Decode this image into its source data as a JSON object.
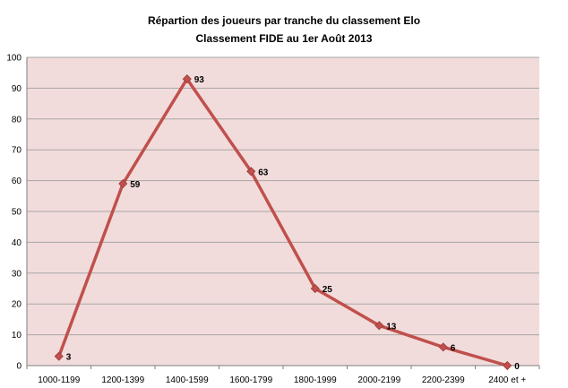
{
  "chart_data": {
    "type": "line",
    "title": "Répartion des joueurs par tranche du classement Elo",
    "subtitle": "Classement FIDE au 1er Août 2013",
    "categories": [
      "1000-1199",
      "1200-1399",
      "1400-1599",
      "1600-1799",
      "1800-1999",
      "2000-2199",
      "2200-2399",
      "2400 et +"
    ],
    "series": [
      {
        "values": [
          3,
          59,
          93,
          63,
          25,
          13,
          6,
          0
        ]
      }
    ],
    "data_labels": [
      "3",
      "59",
      "93",
      "63",
      "25",
      "13",
      "6",
      "0"
    ],
    "ylim": [
      0,
      100
    ],
    "yticks": [
      "0",
      "10",
      "20",
      "30",
      "40",
      "50",
      "60",
      "70",
      "80",
      "90",
      "100"
    ],
    "grid": true,
    "legend": "none",
    "colors": {
      "line": "#c0504d",
      "marker": "#c0504d",
      "plot_background": "#f2dcdb",
      "gridline": "#a6a6a6"
    }
  }
}
